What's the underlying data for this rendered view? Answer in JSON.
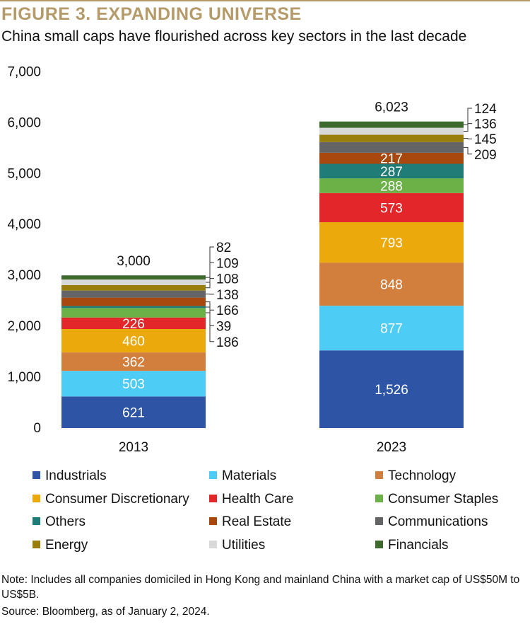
{
  "header": {
    "figure_title": "FIGURE 3. EXPANDING UNIVERSE",
    "subtitle": "China small caps have flourished across key sectors in the last decade",
    "title_color": "#b59a6a"
  },
  "chart_data": {
    "type": "bar",
    "stacked": true,
    "categories": [
      "2013",
      "2023"
    ],
    "totals": [
      3000,
      6023
    ],
    "total_labels": [
      "3,000",
      "6,023"
    ],
    "y_ticks": [
      "0",
      "1,000",
      "2,000",
      "3,000",
      "4,000",
      "5,000",
      "6,000",
      "7,000"
    ],
    "ylim": [
      0,
      7000
    ],
    "grid": false,
    "legend_position": "bottom",
    "series": [
      {
        "name": "Industrials",
        "color": "#2e55a5",
        "values": [
          621,
          1526
        ],
        "labels": [
          "621",
          "1,526"
        ],
        "label_color": "#ffffff"
      },
      {
        "name": "Materials",
        "color": "#4dcdf5",
        "values": [
          503,
          877
        ],
        "labels": [
          "503",
          "877"
        ],
        "label_color": "#ffffff"
      },
      {
        "name": "Technology",
        "color": "#d27f3e",
        "values": [
          362,
          848
        ],
        "labels": [
          "362",
          "848"
        ],
        "label_color": "#ffffff"
      },
      {
        "name": "Consumer Discretionary",
        "color": "#eba90c",
        "values": [
          460,
          793
        ],
        "labels": [
          "460",
          "793"
        ],
        "label_color": "#ffffff"
      },
      {
        "name": "Health Care",
        "color": "#e3262a",
        "values": [
          226,
          573
        ],
        "labels": [
          "226",
          "573"
        ],
        "label_color": "#ffffff"
      },
      {
        "name": "Consumer Staples",
        "color": "#6cb148",
        "values": [
          186,
          288
        ],
        "labels": [
          "186",
          "288"
        ],
        "label_color": "#ffffff"
      },
      {
        "name": "Others",
        "color": "#1f7c77",
        "values": [
          39,
          287
        ],
        "labels": [
          "39",
          "287"
        ],
        "label_color": "#ffffff"
      },
      {
        "name": "Real Estate",
        "color": "#a8480f",
        "values": [
          166,
          217
        ],
        "labels": [
          "166",
          "217"
        ],
        "label_color": "#ffffff"
      },
      {
        "name": "Communications",
        "color": "#636466",
        "values": [
          138,
          209
        ],
        "labels": [
          "138",
          "209"
        ],
        "label_color": "#ffffff"
      },
      {
        "name": "Energy",
        "color": "#997d0d",
        "values": [
          108,
          145
        ],
        "labels": [
          "108",
          "145"
        ],
        "label_color": "#ffffff"
      },
      {
        "name": "Utilities",
        "color": "#d9d9d9",
        "values": [
          109,
          136
        ],
        "labels": [
          "109",
          "136"
        ],
        "label_color": "#ffffff"
      },
      {
        "name": "Financials",
        "color": "#3e6b2d",
        "values": [
          82,
          124
        ],
        "labels": [
          "82",
          "124"
        ],
        "label_color": "#ffffff"
      }
    ],
    "inside_labels": {
      "2013": [
        "Industrials",
        "Materials",
        "Technology",
        "Consumer Discretionary",
        "Health Care"
      ],
      "2023": [
        "Industrials",
        "Materials",
        "Technology",
        "Consumer Discretionary",
        "Health Care",
        "Consumer Staples",
        "Others",
        "Real Estate"
      ]
    }
  },
  "legend": {
    "items": [
      "Industrials",
      "Materials",
      "Technology",
      "Consumer Discretionary",
      "Health Care",
      "Consumer Staples",
      "Others",
      "Real Estate",
      "Communications",
      "Energy",
      "Utilities",
      "Financials"
    ]
  },
  "footer": {
    "note": "Note: Includes all companies domiciled in Hong Kong and mainland China with a market cap of US$50M to US$5B.",
    "source": "Source: Bloomberg, as of January 2, 2024."
  }
}
